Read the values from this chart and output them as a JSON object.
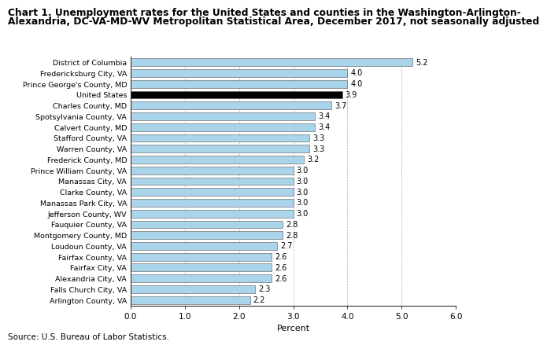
{
  "title_line1": "Chart 1. Unemployment rates for the United States and counties in the Washington-Arlington-",
  "title_line2": "Alexandria, DC-VA-MD-WV Metropolitan Statistical Area, December 2017, not seasonally adjusted",
  "categories": [
    "Arlington County, VA",
    "Falls Church City, VA",
    "Alexandria City, VA",
    "Fairfax City, VA",
    "Fairfax County, VA",
    "Loudoun County, VA",
    "Montgomery County, MD",
    "Fauquier County, VA",
    "Jefferson County, WV",
    "Manassas Park City, VA",
    "Clarke County, VA",
    "Manassas City, VA",
    "Prince William County, VA",
    "Frederick County, MD",
    "Warren County, VA",
    "Stafford County, VA",
    "Calvert County, MD",
    "Spotsylvania County, VA",
    "Charles County, MD",
    "United States",
    "Prince George's County, MD",
    "Fredericksburg City, VA",
    "District of Columbia"
  ],
  "values": [
    2.2,
    2.3,
    2.6,
    2.6,
    2.6,
    2.7,
    2.8,
    2.8,
    3.0,
    3.0,
    3.0,
    3.0,
    3.0,
    3.2,
    3.3,
    3.3,
    3.4,
    3.4,
    3.7,
    3.9,
    4.0,
    4.0,
    5.2
  ],
  "bar_colors": [
    "#aad4ea",
    "#aad4ea",
    "#aad4ea",
    "#aad4ea",
    "#aad4ea",
    "#aad4ea",
    "#aad4ea",
    "#aad4ea",
    "#aad4ea",
    "#aad4ea",
    "#aad4ea",
    "#aad4ea",
    "#aad4ea",
    "#aad4ea",
    "#aad4ea",
    "#aad4ea",
    "#aad4ea",
    "#aad4ea",
    "#aad4ea",
    "#000000",
    "#aad4ea",
    "#aad4ea",
    "#aad4ea"
  ],
  "edge_color": "#555555",
  "xlim": [
    0,
    6.0
  ],
  "xticks": [
    0.0,
    1.0,
    2.0,
    3.0,
    4.0,
    5.0,
    6.0
  ],
  "xlabel": "Percent",
  "source": "Source: U.S. Bureau of Labor Statistics.",
  "bar_height": 0.72,
  "label_fontsize": 6.8,
  "value_fontsize": 7.0,
  "title_fontsize": 8.8,
  "xlabel_fontsize": 8.0,
  "source_fontsize": 7.5,
  "tick_fontsize": 7.5
}
